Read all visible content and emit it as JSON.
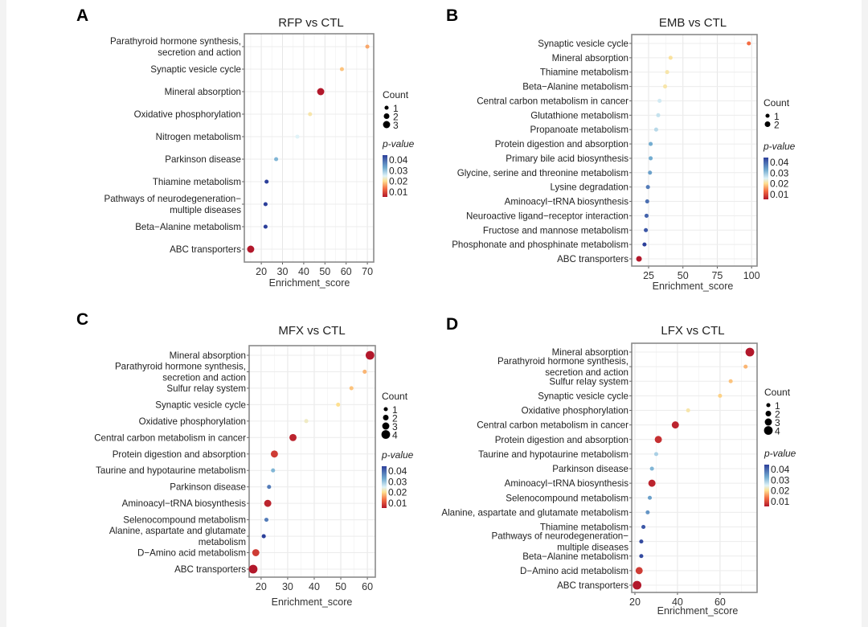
{
  "colors": {
    "low_p": "#b2182b",
    "mid_low": "#f46d43",
    "mid": "#fee090",
    "mid_high": "#d1e5f0",
    "high_p": "#2c3f9a"
  },
  "chart_data": [
    {
      "type": "scatter",
      "panel": "A",
      "title": "RFP vs CTL",
      "xlabel": "Enrichment_score",
      "xlim": [
        12,
        73
      ],
      "xticks": [
        20,
        30,
        40,
        50,
        60,
        70
      ],
      "legend": {
        "count_title": "Count",
        "counts": [
          1,
          2,
          3
        ],
        "color_title": "p-value",
        "color_ticks": [
          "0.04",
          "0.03",
          "0.02",
          "0.01"
        ]
      },
      "points": [
        {
          "term": "Parathyroid hormone synthesis,\nsecretion and action",
          "x": 70,
          "p": 0.016,
          "count": 1
        },
        {
          "term": "Synaptic vesicle cycle",
          "x": 58,
          "p": 0.018,
          "count": 1
        },
        {
          "term": "Mineral absorption",
          "x": 48,
          "p": 0.005,
          "count": 3
        },
        {
          "term": "Oxidative phosphorylation",
          "x": 43,
          "p": 0.022,
          "count": 1
        },
        {
          "term": "Nitrogen metabolism",
          "x": 37,
          "p": 0.028,
          "count": 1
        },
        {
          "term": "Parkinson disease",
          "x": 27,
          "p": 0.035,
          "count": 1
        },
        {
          "term": "Thiamine metabolism",
          "x": 22.5,
          "p": 0.045,
          "count": 1
        },
        {
          "term": "Pathways of neurodegeneration−\nmultiple diseases",
          "x": 22,
          "p": 0.045,
          "count": 1
        },
        {
          "term": "Beta−Alanine metabolism",
          "x": 22,
          "p": 0.045,
          "count": 1
        },
        {
          "term": "ABC transporters",
          "x": 15,
          "p": 0.005,
          "count": 3
        }
      ]
    },
    {
      "type": "scatter",
      "panel": "B",
      "title": "EMB vs CTL",
      "xlabel": "Enrichment_score",
      "xlim": [
        12.7,
        104
      ],
      "xticks": [
        25,
        50,
        75,
        100
      ],
      "legend": {
        "count_title": "Count",
        "counts": [
          1,
          2
        ],
        "color_title": "p-value",
        "color_ticks": [
          "0.04",
          "0.03",
          "0.02",
          "0.01"
        ]
      },
      "points": [
        {
          "term": "Synaptic vesicle cycle",
          "x": 98,
          "p": 0.012,
          "count": 1
        },
        {
          "term": "Mineral absorption",
          "x": 41,
          "p": 0.021,
          "count": 1
        },
        {
          "term": "Thiamine metabolism",
          "x": 38.5,
          "p": 0.022,
          "count": 1
        },
        {
          "term": "Beta−Alanine metabolism",
          "x": 37,
          "p": 0.022,
          "count": 1
        },
        {
          "term": "Central carbon metabolism in cancer",
          "x": 33,
          "p": 0.029,
          "count": 1
        },
        {
          "term": "Glutathione metabolism",
          "x": 32,
          "p": 0.03,
          "count": 1
        },
        {
          "term": "Propanoate metabolism",
          "x": 30.5,
          "p": 0.031,
          "count": 1
        },
        {
          "term": "Protein digestion and absorption",
          "x": 26.5,
          "p": 0.036,
          "count": 1
        },
        {
          "term": "Primary bile acid biosynthesis",
          "x": 26.5,
          "p": 0.036,
          "count": 1
        },
        {
          "term": "Glycine, serine and threonine metabolism",
          "x": 26,
          "p": 0.037,
          "count": 1
        },
        {
          "term": "Lysine degradation",
          "x": 24.5,
          "p": 0.04,
          "count": 1
        },
        {
          "term": "Aminoacyl−tRNA biosynthesis",
          "x": 24,
          "p": 0.041,
          "count": 1
        },
        {
          "term": "Neuroactive ligand−receptor interaction",
          "x": 23.5,
          "p": 0.042,
          "count": 1
        },
        {
          "term": "Fructose and mannose metabolism",
          "x": 23,
          "p": 0.043,
          "count": 1
        },
        {
          "term": "Phosphonate and phosphinate metabolism",
          "x": 22,
          "p": 0.045,
          "count": 1
        },
        {
          "term": "ABC transporters",
          "x": 18,
          "p": 0.005,
          "count": 2
        }
      ]
    },
    {
      "type": "scatter",
      "panel": "C",
      "title": "MFX vs CTL",
      "xlabel": "Enrichment_score",
      "xlim": [
        15.5,
        63
      ],
      "xticks": [
        20,
        30,
        40,
        50,
        60
      ],
      "legend": {
        "count_title": "Count",
        "counts": [
          1,
          2,
          3,
          4
        ],
        "color_title": "p-value",
        "color_ticks": [
          "0.04",
          "0.03",
          "0.02",
          "0.01"
        ]
      },
      "points": [
        {
          "term": "Mineral absorption",
          "x": 61,
          "p": 0.005,
          "count": 4
        },
        {
          "term": "Parathyroid hormone synthesis,\nsecretion and action",
          "x": 59,
          "p": 0.017,
          "count": 1
        },
        {
          "term": "Sulfur relay system",
          "x": 54,
          "p": 0.018,
          "count": 1
        },
        {
          "term": "Synaptic vesicle cycle",
          "x": 49,
          "p": 0.02,
          "count": 1
        },
        {
          "term": "Oxidative phosphorylation",
          "x": 37,
          "p": 0.024,
          "count": 1
        },
        {
          "term": "Central carbon metabolism in cancer",
          "x": 32,
          "p": 0.006,
          "count": 3
        },
        {
          "term": "Protein digestion and absorption",
          "x": 25,
          "p": 0.008,
          "count": 3
        },
        {
          "term": "Taurine and hypotaurine metabolism",
          "x": 24.5,
          "p": 0.035,
          "count": 1
        },
        {
          "term": "Parkinson disease",
          "x": 23,
          "p": 0.04,
          "count": 1
        },
        {
          "term": "Aminoacyl−tRNA biosynthesis",
          "x": 22.5,
          "p": 0.006,
          "count": 3
        },
        {
          "term": "Selenocompound metabolism",
          "x": 22,
          "p": 0.04,
          "count": 1
        },
        {
          "term": "Alanine, aspartate and glutamate\nmetabolism",
          "x": 21,
          "p": 0.045,
          "count": 1
        },
        {
          "term": "D−Amino acid metabolism",
          "x": 18,
          "p": 0.008,
          "count": 3
        },
        {
          "term": "ABC transporters",
          "x": 17,
          "p": 0.005,
          "count": 4
        }
      ]
    },
    {
      "type": "scatter",
      "panel": "D",
      "title": "LFX vs CTL",
      "xlabel": "Enrichment_score",
      "xlim": [
        18.5,
        77.4
      ],
      "xticks": [
        20,
        40,
        60
      ],
      "legend": {
        "count_title": "Count",
        "counts": [
          1,
          2,
          3,
          4
        ],
        "color_title": "p-value",
        "color_ticks": [
          "0.04",
          "0.03",
          "0.02",
          "0.01"
        ]
      },
      "points": [
        {
          "term": "Mineral absorption",
          "x": 74,
          "p": 0.005,
          "count": 4
        },
        {
          "term": "Parathyroid hormone synthesis,\nsecretion and action",
          "x": 72,
          "p": 0.017,
          "count": 1
        },
        {
          "term": "Sulfur relay system",
          "x": 65,
          "p": 0.018,
          "count": 1
        },
        {
          "term": "Synaptic vesicle cycle",
          "x": 60,
          "p": 0.019,
          "count": 1
        },
        {
          "term": "Oxidative phosphorylation",
          "x": 45,
          "p": 0.022,
          "count": 1
        },
        {
          "term": "Central carbon metabolism in cancer",
          "x": 39,
          "p": 0.006,
          "count": 3
        },
        {
          "term": "Protein digestion and absorption",
          "x": 31,
          "p": 0.007,
          "count": 3
        },
        {
          "term": "Taurine and hypotaurine metabolism",
          "x": 30,
          "p": 0.032,
          "count": 1
        },
        {
          "term": "Parkinson disease",
          "x": 28,
          "p": 0.035,
          "count": 1
        },
        {
          "term": "Aminoacyl−tRNA biosynthesis",
          "x": 28,
          "p": 0.006,
          "count": 3
        },
        {
          "term": "Selenocompound metabolism",
          "x": 27,
          "p": 0.037,
          "count": 1
        },
        {
          "term": "Alanine, aspartate and glutamate metabolism",
          "x": 26,
          "p": 0.038,
          "count": 1
        },
        {
          "term": "Thiamine metabolism",
          "x": 24,
          "p": 0.043,
          "count": 1
        },
        {
          "term": "Pathways of neurodegeneration−\nmultiple diseases",
          "x": 23,
          "p": 0.044,
          "count": 1
        },
        {
          "term": "Beta−Alanine metabolism",
          "x": 23,
          "p": 0.044,
          "count": 1
        },
        {
          "term": "D−Amino acid metabolism",
          "x": 22,
          "p": 0.008,
          "count": 3
        },
        {
          "term": "ABC transporters",
          "x": 21,
          "p": 0.005,
          "count": 4
        }
      ]
    }
  ]
}
